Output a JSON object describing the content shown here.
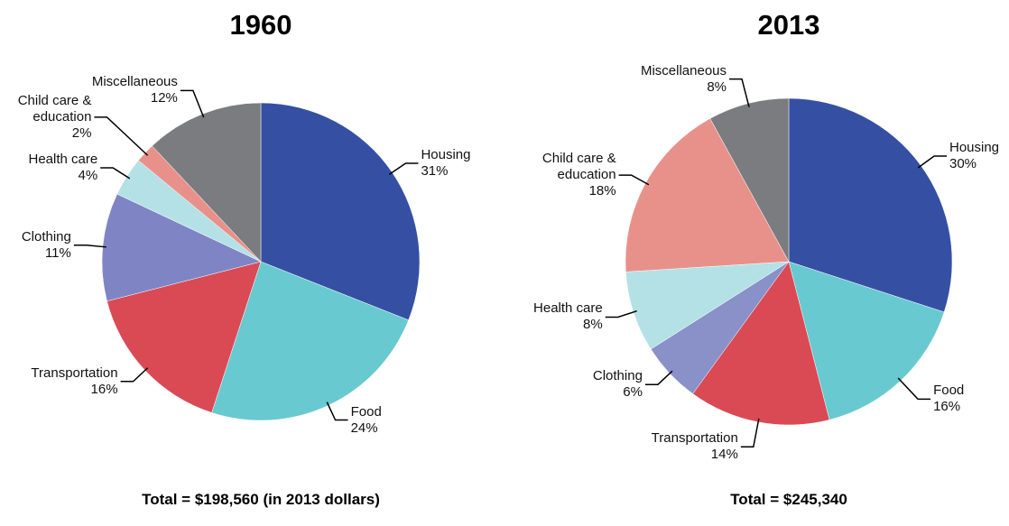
{
  "chart_data": [
    {
      "type": "pie",
      "title": "1960",
      "subtitle": "Total = $198,560 (in 2013 dollars)",
      "categories": [
        "Housing",
        "Food",
        "Transportation",
        "Clothing",
        "Health care",
        "Child care & education",
        "Miscellaneous"
      ],
      "values": [
        31,
        24,
        16,
        11,
        4,
        2,
        12
      ],
      "value_labels": [
        "31%",
        "24%",
        "16%",
        "11%",
        "4%",
        "2%",
        "12%"
      ],
      "colors": [
        "#3550a3",
        "#68c9d0",
        "#d94a55",
        "#7f85c4",
        "#b3e1e6",
        "#e8918a",
        "#7b7c80"
      ]
    },
    {
      "type": "pie",
      "title": "2013",
      "subtitle": "Total = $245,340",
      "categories": [
        "Housing",
        "Food",
        "Transportation",
        "Clothing",
        "Health care",
        "Child care & education",
        "Miscellaneous"
      ],
      "values": [
        30,
        16,
        14,
        6,
        8,
        18,
        8
      ],
      "value_labels": [
        "30%",
        "16%",
        "14%",
        "6%",
        "8%",
        "18%",
        "8%"
      ],
      "colors": [
        "#3550a3",
        "#68c9d0",
        "#d94a55",
        "#8a90c8",
        "#b3e1e6",
        "#e8918a",
        "#7b7c80"
      ]
    }
  ]
}
